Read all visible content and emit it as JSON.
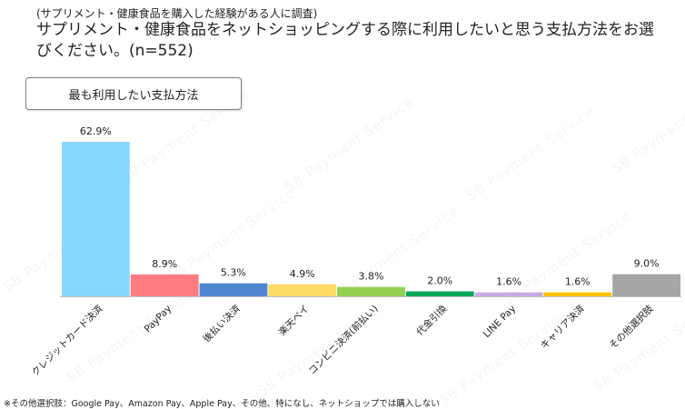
{
  "header": {
    "subtitle": "(サプリメント・健康食品を購入した経験がある人に調査)",
    "title": "サプリメント・健康食品をネットショッピングする際に利用したいと思う支払方法をお選びください。(n=552)"
  },
  "legend": {
    "label": "最も利用したい支払方法"
  },
  "watermark": {
    "text": "SB Payment Service"
  },
  "footnote": "※その他選択肢：Google Pay、Amazon Pay、Apple Pay、その他、特になし、ネットショップでは購入しない",
  "chart_data": {
    "type": "bar",
    "categories": [
      "クレジットカード決済",
      "PayPay",
      "後払い決済",
      "楽天ペイ",
      "コンビニ決済(前払い)",
      "代金引換",
      "LINE Pay",
      "キャリア決済",
      "その他選択肢"
    ],
    "values": [
      62.9,
      8.9,
      5.3,
      4.9,
      3.8,
      2.0,
      1.6,
      1.6,
      9.0
    ],
    "value_labels": [
      "62.9%",
      "8.9%",
      "5.3%",
      "4.9%",
      "3.8%",
      "2.0%",
      "1.6%",
      "1.6%",
      "9.0%"
    ],
    "colors": [
      "#87d6ff",
      "#ff7c80",
      "#4f86d0",
      "#ffd966",
      "#92d050",
      "#00a85a",
      "#c9a8e6",
      "#ffc000",
      "#a6a6a6"
    ],
    "ylim": [
      0,
      62.9
    ],
    "grid": false,
    "xlabel": "",
    "ylabel": ""
  }
}
